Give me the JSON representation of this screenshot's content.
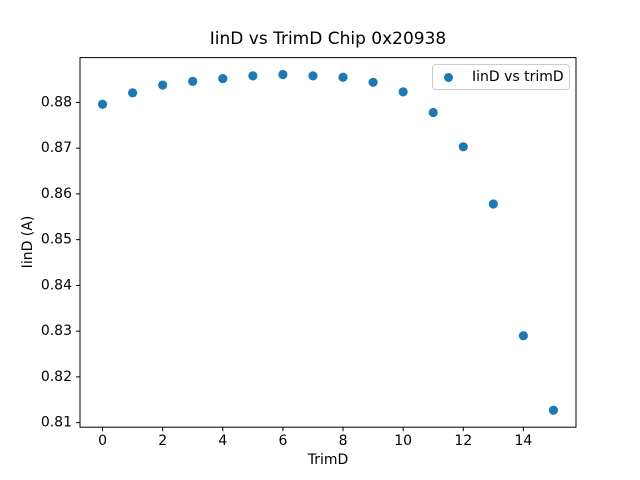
{
  "chart_data": {
    "type": "scatter",
    "title": "IinD vs TrimD Chip 0x20938",
    "xlabel": "TrimD",
    "ylabel": "IinD (A)",
    "legend": [
      "IinD vs trimD"
    ],
    "legend_position": "upper right",
    "marker_color": "#1f77b4",
    "axes_color": "#000000",
    "background_color": "#ffffff",
    "grid": false,
    "x": [
      0,
      1,
      2,
      3,
      4,
      5,
      6,
      7,
      8,
      9,
      10,
      11,
      12,
      13,
      14,
      15
    ],
    "y": [
      0.8796,
      0.8821,
      0.8838,
      0.8846,
      0.8852,
      0.8858,
      0.8861,
      0.8858,
      0.8855,
      0.8844,
      0.8823,
      0.8778,
      0.8703,
      0.8578,
      0.829,
      0.8127
    ],
    "xlim": [
      -0.75,
      15.75
    ],
    "ylim": [
      0.809,
      0.8898
    ],
    "x_ticks": [
      "0",
      "2",
      "4",
      "6",
      "8",
      "10",
      "12",
      "14"
    ],
    "y_ticks": [
      "0.81",
      "0.82",
      "0.83",
      "0.84",
      "0.85",
      "0.86",
      "0.87",
      "0.88"
    ]
  }
}
